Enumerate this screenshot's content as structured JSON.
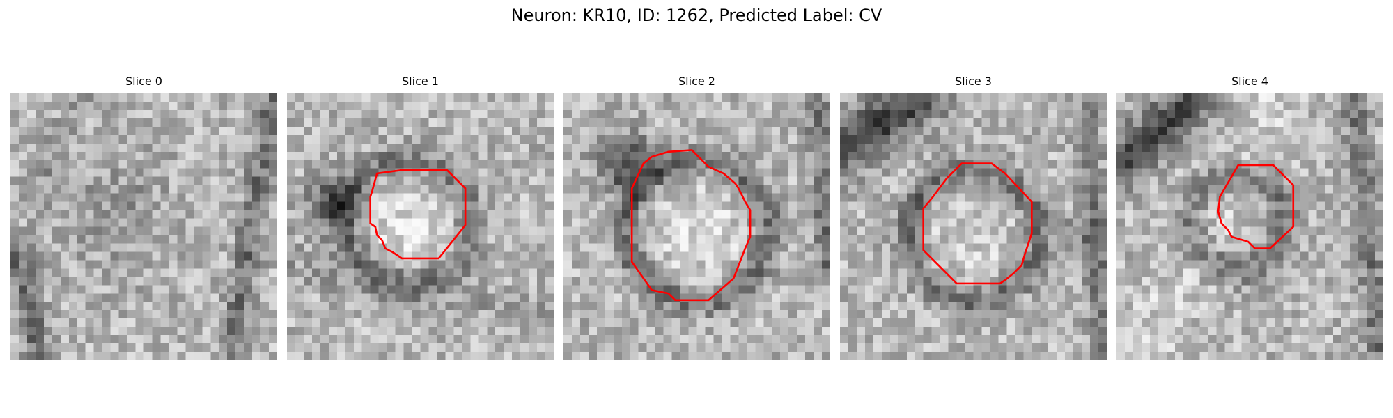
{
  "figure": {
    "title": "Neuron: KR10, ID: 1262, Predicted Label: CV",
    "contour_color": "#ff0000",
    "colormap": "grayscale"
  },
  "panels": [
    {
      "title": "Slice 0",
      "has_contour": false
    },
    {
      "title": "Slice 1",
      "has_contour": true
    },
    {
      "title": "Slice 2",
      "has_contour": true
    },
    {
      "title": "Slice 3",
      "has_contour": true
    },
    {
      "title": "Slice 4",
      "has_contour": true
    }
  ]
}
